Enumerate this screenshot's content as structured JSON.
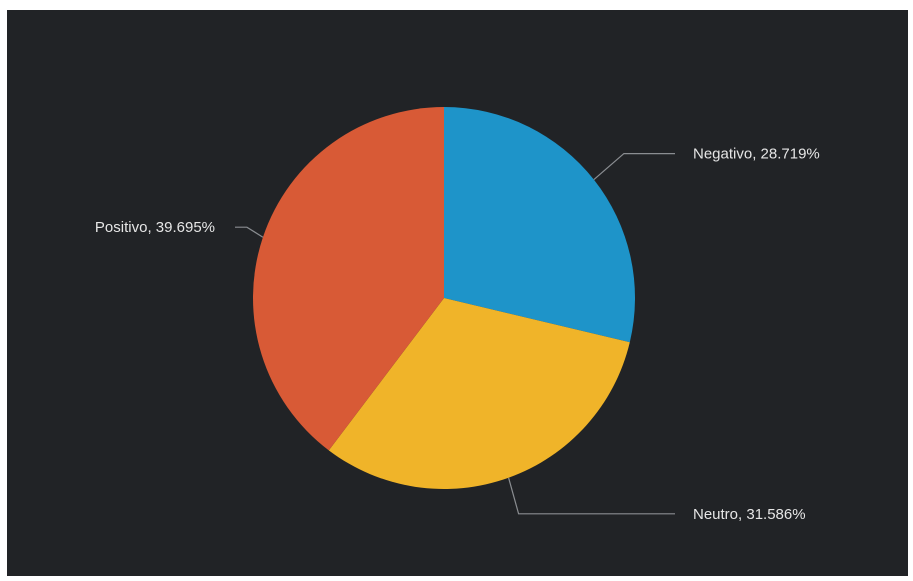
{
  "chart_data": {
    "type": "pie",
    "title": "",
    "slices": [
      {
        "label": "Negativo",
        "value": 28.719,
        "display": "Negativo, 28.719%",
        "color": "#1e94c9"
      },
      {
        "label": "Neutro",
        "value": 31.586,
        "display": "Neutro, 31.586%",
        "color": "#f0b429"
      },
      {
        "label": "Positivo",
        "value": 39.695,
        "display": "Positivo, 39.695%",
        "color": "#d85a36"
      }
    ],
    "background_color": "#212326"
  }
}
